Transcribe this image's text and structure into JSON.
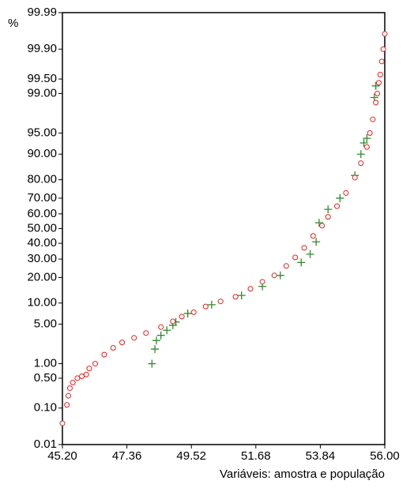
{
  "chart_data": {
    "type": "probability",
    "y_unit": "%",
    "xlabel": "Variáveis: amostra e população",
    "xlim": [
      45.2,
      56.0
    ],
    "xticks": [
      {
        "value": 45.2,
        "label": "45.20"
      },
      47.36,
      49.52,
      51.68,
      53.84,
      {
        "value": 56.0,
        "label": "56.00"
      }
    ],
    "ylim": [
      0.01,
      99.99
    ],
    "yticks": [
      0.01,
      {
        "value": 0.1,
        "label": "0.10"
      },
      {
        "value": 0.5,
        "label": "0.50"
      },
      {
        "value": 1,
        "label": "1.00"
      },
      {
        "value": 5,
        "label": "5.00"
      },
      {
        "value": 10,
        "label": "10.00"
      },
      {
        "value": 20,
        "label": "20.00"
      },
      {
        "value": 30,
        "label": "30.00"
      },
      {
        "value": 40,
        "label": "40.00"
      },
      {
        "value": 50,
        "label": "50.00"
      },
      {
        "value": 60,
        "label": "60.00"
      },
      {
        "value": 70,
        "label": "70.00"
      },
      {
        "value": 80,
        "label": "80.00"
      },
      {
        "value": 90,
        "label": "90.00"
      },
      {
        "value": 95,
        "label": "95.00"
      },
      {
        "value": 99,
        "label": "99.00"
      },
      {
        "value": 99.5,
        "label": "99.50"
      },
      {
        "value": 99.9,
        "label": "99.90"
      },
      99.99
    ],
    "series": [
      {
        "color": "#2e8b2e",
        "marker": "plus",
        "x": [
          48.2,
          48.3,
          48.35,
          48.5,
          48.7,
          48.9,
          49.0,
          49.4,
          50.2,
          51.2,
          51.9,
          52.5,
          53.2,
          53.5,
          53.7,
          53.8,
          54.1,
          54.5,
          55.0,
          55.2,
          55.3,
          55.4,
          55.65,
          55.7
        ],
        "values": [
          1.0,
          1.9,
          2.7,
          3.3,
          4.0,
          4.8,
          5.4,
          7.2,
          9.5,
          12.5,
          16,
          21,
          28,
          33,
          41,
          54,
          63,
          70,
          82,
          90,
          93,
          94,
          98.8,
          99.3
        ]
      },
      {
        "color": "#e8201c",
        "marker": "circle",
        "x": [
          45.2,
          45.35,
          45.4,
          45.45,
          45.55,
          45.7,
          45.85,
          46.0,
          46.1,
          46.3,
          46.6,
          46.9,
          47.2,
          47.6,
          48.0,
          48.5,
          48.9,
          49.2,
          49.6,
          50.0,
          50.5,
          51.0,
          51.5,
          51.9,
          52.3,
          52.7,
          53.0,
          53.3,
          53.6,
          53.9,
          54.1,
          54.4,
          54.7,
          55.0,
          55.2,
          55.4,
          55.5,
          55.6,
          55.7,
          55.75,
          55.8,
          55.85,
          55.9,
          55.95,
          56.0
        ],
        "values": [
          0.04,
          0.12,
          0.2,
          0.3,
          0.4,
          0.5,
          0.55,
          0.6,
          0.8,
          1.0,
          1.5,
          2.0,
          2.5,
          3.0,
          3.6,
          4.5,
          5.5,
          6.5,
          7.5,
          9,
          10.5,
          12,
          15,
          18,
          21,
          26,
          31,
          37,
          45,
          52,
          58,
          65,
          73,
          81,
          87,
          92,
          95,
          97,
          98.5,
          99,
          99.4,
          99.6,
          99.8,
          99.9,
          99.96
        ]
      }
    ]
  }
}
